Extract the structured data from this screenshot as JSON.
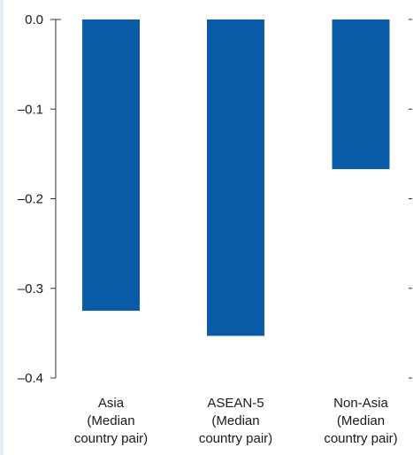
{
  "chart_data": {
    "type": "bar",
    "title": "",
    "xlabel": "",
    "ylabel": "",
    "categories": [
      [
        "Asia",
        "(Median",
        "country pair)"
      ],
      [
        "ASEAN-5",
        "(Median",
        "country pair)"
      ],
      [
        "Non-Asia",
        "(Median",
        "country pair)"
      ]
    ],
    "values": [
      -0.325,
      -0.353,
      -0.167
    ],
    "ylim": [
      -0.4,
      0.0
    ],
    "yticks": [
      0.0,
      -0.1,
      -0.2,
      -0.3,
      -0.4
    ],
    "ytick_labels": [
      "0.0",
      "–0.1",
      "–0.2",
      "–0.3",
      "–0.4"
    ],
    "grid": false,
    "legend": "none",
    "colors": {
      "bar": "#0a5ca8",
      "axis": "#333333",
      "text": "#1a1a1a"
    }
  }
}
